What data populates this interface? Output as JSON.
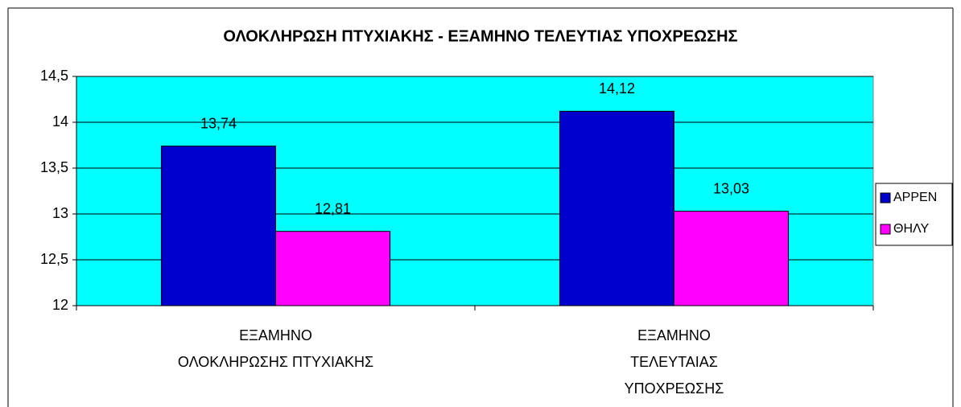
{
  "chart_data": {
    "type": "bar",
    "title": "ΟΛΟΚΛΗΡΩΣΗ ΠΤΥΧΙΑΚΗΣ - ΕΞΑΜΗΝΟ ΤΕΛΕΥΤΙΑΣ ΥΠΟΧΡΕΩΣΗΣ",
    "categories": [
      "ΕΞΑΜΗΝΟ\nΟΛΟΚΛΗΡΩΣΗΣ ΠΤΥΧΙΑΚΗΣ",
      "ΕΞΑΜΗΝΟ\nΤΕΛΕΥΤΑΙΑΣ\nΥΠΟΧΡΕΩΣΗΣ"
    ],
    "series": [
      {
        "name": "ΑΡΡΕΝ",
        "color": "#0000cc",
        "values": [
          13.74,
          14.12
        ],
        "value_labels": [
          "13,74",
          "14,12"
        ]
      },
      {
        "name": "ΘΗΛΥ",
        "color": "#ff00ff",
        "values": [
          12.81,
          13.03
        ],
        "value_labels": [
          "12,81",
          "13,03"
        ]
      }
    ],
    "ylim": [
      12,
      14.5
    ],
    "yticks": [
      12,
      {
        "value": 12.5,
        "label": "12,5"
      },
      13,
      {
        "value": 13.5,
        "label": "13,5"
      },
      14,
      {
        "value": 14.5,
        "label": "14,5"
      }
    ],
    "grid": true,
    "legend": "right",
    "background": "#00ffff"
  }
}
